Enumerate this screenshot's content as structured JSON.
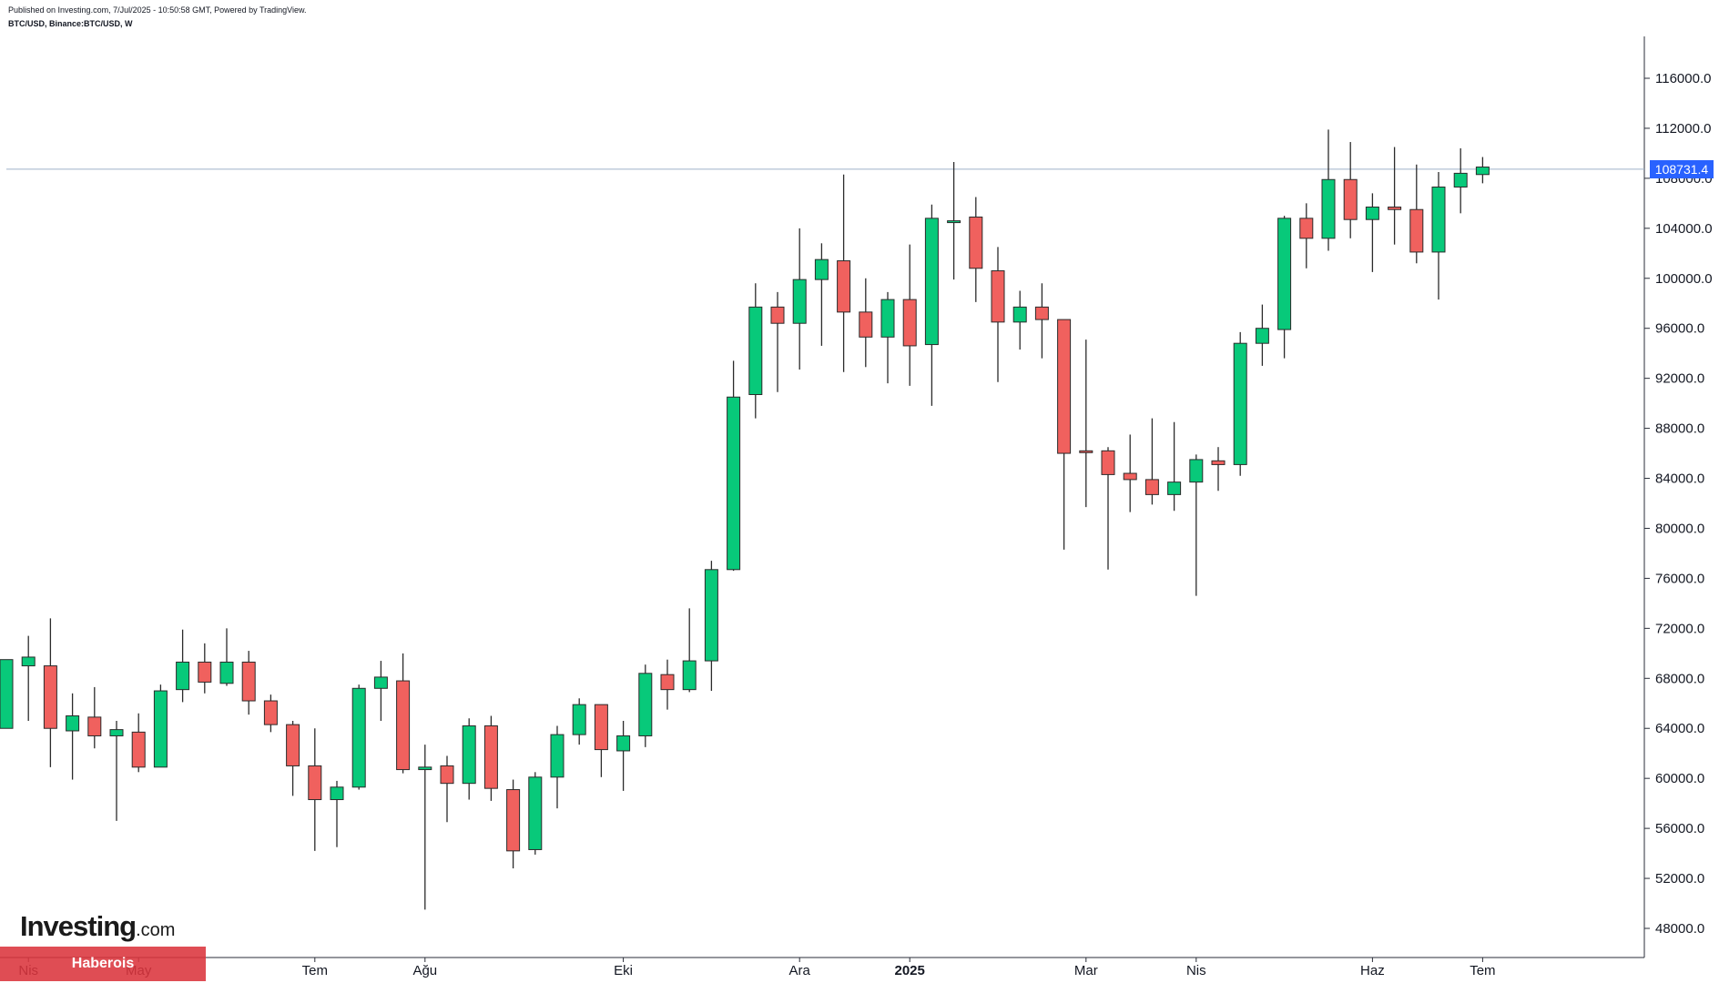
{
  "header": {
    "published": "Published on Investing.com, 7/Jul/2025 - 10:50:58 GMT, Powered by TradingView.",
    "symbol": "BTC/USD, Binance:BTC/USD, W"
  },
  "colors": {
    "up": "#08c97a",
    "down": "#f0615e",
    "price_line": "#9fb0c9",
    "badge": "#2962ff"
  },
  "last_price_label": "108731.4",
  "branding": {
    "logo_main": "Investing",
    "logo_suffix": ".com",
    "watermark": "Haberois"
  },
  "chart_data": {
    "type": "candlestick",
    "interval": "W",
    "ylim": [
      45000,
      120000
    ],
    "y_ticks": [
      "116000.0",
      "112000.0",
      "108000.0",
      "104000.0",
      "100000.0",
      "96000.0",
      "92000.0",
      "88000.0",
      "84000.0",
      "80000.0",
      "76000.0",
      "72000.0",
      "68000.0",
      "64000.0",
      "60000.0",
      "56000.0",
      "52000.0",
      "48000.0"
    ],
    "x_labels": [
      {
        "label": "Nis",
        "index": 1,
        "bold": false
      },
      {
        "label": "May",
        "index": 6,
        "bold": false
      },
      {
        "label": "Tem",
        "index": 14,
        "bold": false
      },
      {
        "label": "Ağu",
        "index": 19,
        "bold": false
      },
      {
        "label": "Eki",
        "index": 28,
        "bold": false
      },
      {
        "label": "Ara",
        "index": 36,
        "bold": false
      },
      {
        "label": "2025",
        "index": 41,
        "bold": true
      },
      {
        "label": "Mar",
        "index": 49,
        "bold": false
      },
      {
        "label": "Nis",
        "index": 54,
        "bold": false
      },
      {
        "label": "Haz",
        "index": 62,
        "bold": false
      },
      {
        "label": "Tem",
        "index": 67,
        "bold": false
      }
    ],
    "last_price": 108731.4,
    "candles": [
      {
        "o": 64000,
        "h": 69500,
        "l": 64000,
        "c": 69500
      },
      {
        "o": 69000,
        "h": 71400,
        "l": 64600,
        "c": 69700
      },
      {
        "o": 69000,
        "h": 72800,
        "l": 60900,
        "c": 64000
      },
      {
        "o": 63800,
        "h": 66800,
        "l": 59900,
        "c": 65000
      },
      {
        "o": 64900,
        "h": 67300,
        "l": 62400,
        "c": 63400
      },
      {
        "o": 63400,
        "h": 64600,
        "l": 56600,
        "c": 63900
      },
      {
        "o": 63700,
        "h": 65200,
        "l": 60500,
        "c": 60900
      },
      {
        "o": 60900,
        "h": 67500,
        "l": 60900,
        "c": 67000
      },
      {
        "o": 67100,
        "h": 71900,
        "l": 66100,
        "c": 69300
      },
      {
        "o": 69300,
        "h": 70800,
        "l": 66800,
        "c": 67700
      },
      {
        "o": 67600,
        "h": 72000,
        "l": 67400,
        "c": 69300
      },
      {
        "o": 69300,
        "h": 70200,
        "l": 65100,
        "c": 66200
      },
      {
        "o": 66200,
        "h": 66700,
        "l": 63700,
        "c": 64300
      },
      {
        "o": 64300,
        "h": 64600,
        "l": 58600,
        "c": 61000
      },
      {
        "o": 61000,
        "h": 64000,
        "l": 54200,
        "c": 58300
      },
      {
        "o": 58300,
        "h": 59800,
        "l": 54500,
        "c": 59300
      },
      {
        "o": 59300,
        "h": 67500,
        "l": 59100,
        "c": 67200
      },
      {
        "o": 67200,
        "h": 69400,
        "l": 64600,
        "c": 68100
      },
      {
        "o": 67800,
        "h": 70000,
        "l": 60400,
        "c": 60700
      },
      {
        "o": 60700,
        "h": 62700,
        "l": 49500,
        "c": 60900
      },
      {
        "o": 61000,
        "h": 61800,
        "l": 56500,
        "c": 59600
      },
      {
        "o": 59600,
        "h": 64800,
        "l": 58300,
        "c": 64200
      },
      {
        "o": 64200,
        "h": 65000,
        "l": 58200,
        "c": 59200
      },
      {
        "o": 59100,
        "h": 59900,
        "l": 52800,
        "c": 54200
      },
      {
        "o": 54300,
        "h": 60500,
        "l": 53900,
        "c": 60100
      },
      {
        "o": 60100,
        "h": 64200,
        "l": 57600,
        "c": 63500
      },
      {
        "o": 63500,
        "h": 66400,
        "l": 62700,
        "c": 65900
      },
      {
        "o": 65900,
        "h": 65900,
        "l": 60100,
        "c": 62300
      },
      {
        "o": 62200,
        "h": 64600,
        "l": 59000,
        "c": 63400
      },
      {
        "o": 63400,
        "h": 69100,
        "l": 62500,
        "c": 68400
      },
      {
        "o": 68300,
        "h": 69500,
        "l": 65500,
        "c": 67100
      },
      {
        "o": 67100,
        "h": 73600,
        "l": 66900,
        "c": 69400
      },
      {
        "o": 69400,
        "h": 77400,
        "l": 67000,
        "c": 76700
      },
      {
        "o": 76700,
        "h": 93400,
        "l": 76600,
        "c": 90500
      },
      {
        "o": 90700,
        "h": 99600,
        "l": 88800,
        "c": 97700
      },
      {
        "o": 97700,
        "h": 98900,
        "l": 90900,
        "c": 96400
      },
      {
        "o": 96400,
        "h": 104000,
        "l": 92700,
        "c": 99900
      },
      {
        "o": 99900,
        "h": 102800,
        "l": 94600,
        "c": 101500
      },
      {
        "o": 101400,
        "h": 108300,
        "l": 92500,
        "c": 97300
      },
      {
        "o": 97300,
        "h": 100000,
        "l": 92900,
        "c": 95300
      },
      {
        "o": 95300,
        "h": 98900,
        "l": 91600,
        "c": 98300
      },
      {
        "o": 98300,
        "h": 102700,
        "l": 91400,
        "c": 94600
      },
      {
        "o": 94700,
        "h": 105900,
        "l": 89800,
        "c": 104800
      },
      {
        "o": 104500,
        "h": 109300,
        "l": 99900,
        "c": 104600
      },
      {
        "o": 104900,
        "h": 106500,
        "l": 98100,
        "c": 100800
      },
      {
        "o": 100600,
        "h": 102500,
        "l": 91700,
        "c": 96500
      },
      {
        "o": 96500,
        "h": 99000,
        "l": 94300,
        "c": 97700
      },
      {
        "o": 97700,
        "h": 99600,
        "l": 93600,
        "c": 96700
      },
      {
        "o": 96700,
        "h": 96700,
        "l": 78300,
        "c": 86000
      },
      {
        "o": 86200,
        "h": 95100,
        "l": 81700,
        "c": 86100
      },
      {
        "o": 86200,
        "h": 86500,
        "l": 76700,
        "c": 84300
      },
      {
        "o": 84400,
        "h": 87500,
        "l": 81300,
        "c": 83900
      },
      {
        "o": 83900,
        "h": 88800,
        "l": 81900,
        "c": 82700
      },
      {
        "o": 82700,
        "h": 88500,
        "l": 81400,
        "c": 83700
      },
      {
        "o": 83700,
        "h": 85900,
        "l": 74600,
        "c": 85500
      },
      {
        "o": 85400,
        "h": 86500,
        "l": 83000,
        "c": 85100
      },
      {
        "o": 85100,
        "h": 95700,
        "l": 84200,
        "c": 94800
      },
      {
        "o": 94800,
        "h": 97900,
        "l": 93000,
        "c": 96000
      },
      {
        "o": 95900,
        "h": 105000,
        "l": 93600,
        "c": 104800
      },
      {
        "o": 104800,
        "h": 106000,
        "l": 100800,
        "c": 103200
      },
      {
        "o": 103200,
        "h": 111900,
        "l": 102200,
        "c": 107900
      },
      {
        "o": 107900,
        "h": 110900,
        "l": 103200,
        "c": 104700
      },
      {
        "o": 104700,
        "h": 106800,
        "l": 100500,
        "c": 105700
      },
      {
        "o": 105700,
        "h": 110500,
        "l": 102700,
        "c": 105500
      },
      {
        "o": 105500,
        "h": 109100,
        "l": 101200,
        "c": 102100
      },
      {
        "o": 102100,
        "h": 108500,
        "l": 98300,
        "c": 107300
      },
      {
        "o": 107300,
        "h": 110400,
        "l": 105200,
        "c": 108400
      },
      {
        "o": 108300,
        "h": 109700,
        "l": 107600,
        "c": 108900
      }
    ]
  }
}
